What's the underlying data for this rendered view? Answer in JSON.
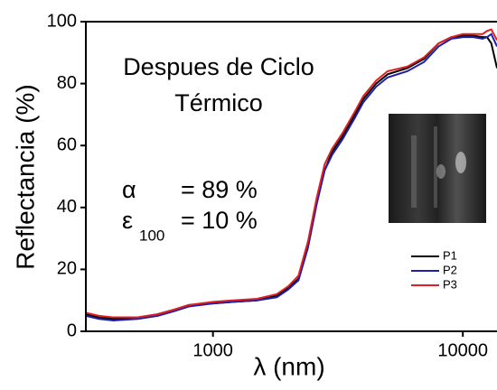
{
  "chart_data": {
    "type": "line",
    "x_label": "λ (nm)",
    "y_label": "Reflectancia (%)",
    "annotations": [
      "Despues de Ciclo",
      "Térmico",
      "α",
      "= 89 %",
      "ε",
      "100",
      "= 10 %"
    ],
    "x": [
      310,
      350,
      400,
      500,
      600,
      700,
      800,
      1000,
      1200,
      1500,
      1800,
      2000,
      2200,
      2400,
      2600,
      2800,
      3000,
      3300,
      3700,
      4000,
      4500,
      5000,
      6000,
      7000,
      8000,
      9000,
      10000,
      11000,
      12000,
      12500,
      13000,
      13700
    ],
    "series": [
      {
        "name": "P1",
        "color": "#000000",
        "values": [
          5.5,
          4.5,
          4,
          4.5,
          5.5,
          7,
          8.5,
          9,
          9.5,
          10,
          11.5,
          14,
          17,
          28,
          42,
          52,
          58,
          63,
          70,
          75,
          80,
          83,
          85,
          88,
          93,
          95,
          95.5,
          95.5,
          95,
          95,
          93,
          85
        ]
      },
      {
        "name": "P2",
        "color": "#1f1fa8",
        "values": [
          5,
          4,
          3.5,
          4,
          5,
          6.5,
          8,
          9,
          9.5,
          10,
          11,
          13.5,
          16.5,
          27,
          41,
          52,
          57,
          62,
          69,
          74,
          79,
          82,
          84,
          87,
          92,
          94.5,
          95,
          95,
          94.5,
          95,
          96,
          92
        ]
      },
      {
        "name": "P3",
        "color": "#e02020",
        "values": [
          6,
          5,
          4.5,
          4.5,
          5.5,
          7,
          8.5,
          9.5,
          10,
          10.5,
          12,
          14.5,
          18,
          29,
          43,
          54,
          59,
          64,
          71,
          76,
          81,
          84,
          85.5,
          88.5,
          93,
          95,
          96,
          96,
          96,
          97,
          97.5,
          94
        ]
      }
    ],
    "xscale": "log",
    "xlim": [
      310,
      13700
    ],
    "ylim": [
      0,
      100
    ],
    "xticks": [
      1000,
      10000
    ],
    "yticks": [
      0,
      20,
      40,
      60,
      80,
      100
    ],
    "legend": "lower right"
  }
}
